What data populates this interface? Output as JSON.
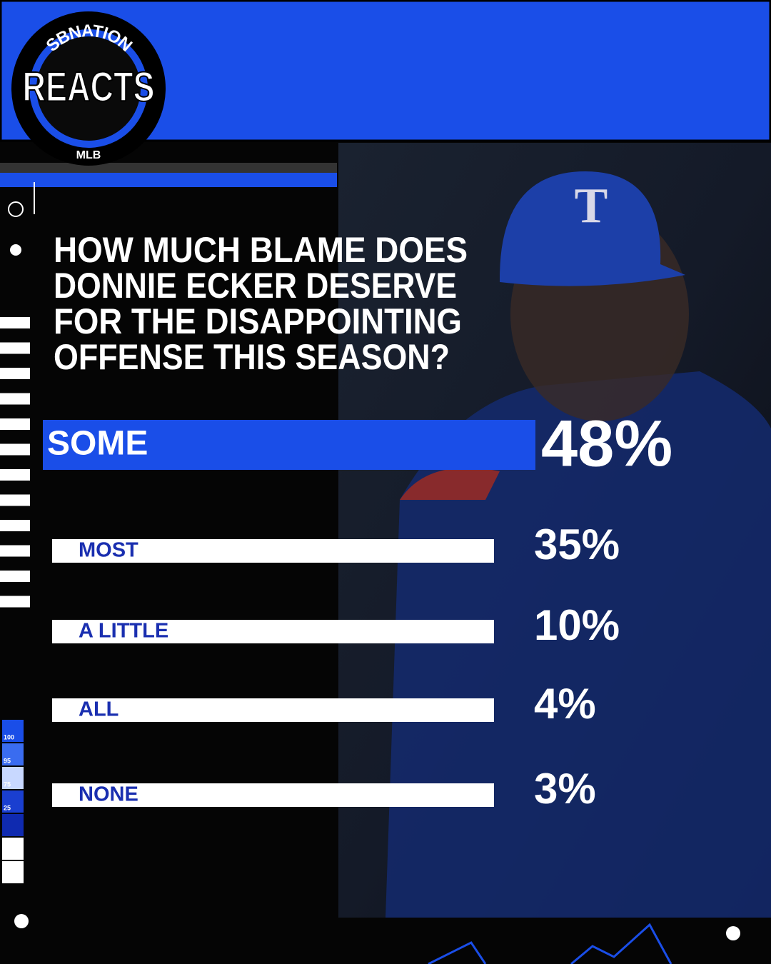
{
  "logo": {
    "top": "SBNATION",
    "main": "REACTS",
    "bottom": "MLB"
  },
  "question": {
    "lines": [
      "HOW MUCH BLAME DOES",
      "DONNIE ECKER DESERVE",
      "FOR THE DISAPPOINTING",
      "OFFENSE THIS SEASON?"
    ]
  },
  "results": [
    {
      "label": "SOME",
      "percent": "48%"
    },
    {
      "label": "MOST",
      "percent": "35%"
    },
    {
      "label": "A LITTLE",
      "percent": "10%"
    },
    {
      "label": "ALL",
      "percent": "4%"
    },
    {
      "label": "NONE",
      "percent": "3%"
    }
  ],
  "scale": {
    "labels": [
      "100",
      "95",
      "75",
      "25"
    ]
  }
}
